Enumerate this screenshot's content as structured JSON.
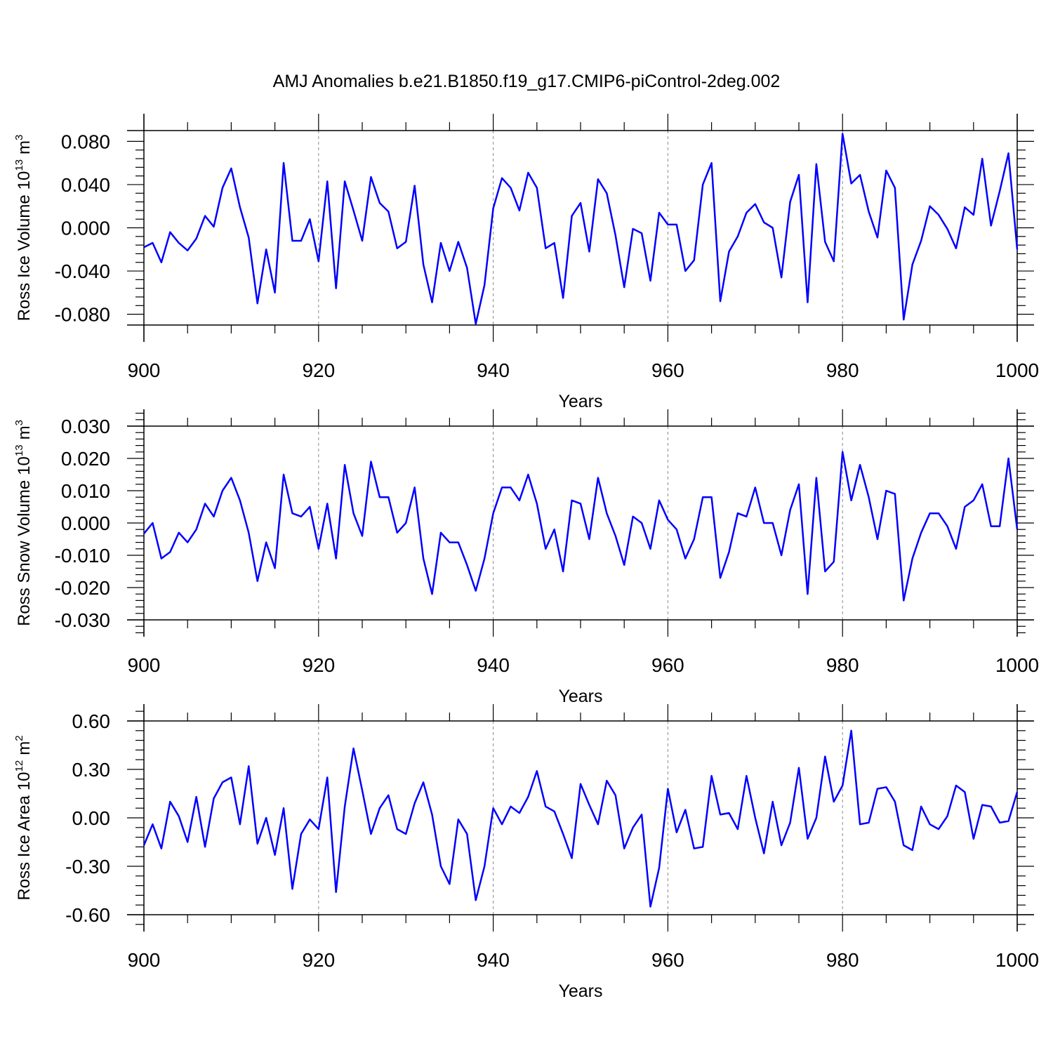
{
  "chart_data": [
    {
      "type": "line",
      "title": "AMJ Anomalies b.e21.B1850.f19_g17.CMIP6-piControl-2deg.002",
      "xlabel": "Years",
      "ylabel": "Ross Ice Volume",
      "ylabel_scale": "10",
      "ylabel_scale_exp": "13",
      "ylabel_unit": "m",
      "ylabel_unit_exp": "3",
      "xlim": [
        900,
        1000
      ],
      "xticks": [
        900,
        920,
        940,
        960,
        980,
        1000
      ],
      "ylim": [
        -0.09,
        0.09
      ],
      "yticks": [
        {
          "value": -0.08,
          "label": "-0.080"
        },
        {
          "value": -0.04,
          "label": "-0.040"
        },
        {
          "value": 0,
          "label": "0.000"
        },
        {
          "value": 0.04,
          "label": "0.040"
        },
        {
          "value": 0.08,
          "label": "0.080"
        }
      ],
      "grid": true,
      "color": "#0000ff",
      "x": [
        900,
        901,
        902,
        903,
        904,
        905,
        906,
        907,
        908,
        909,
        910,
        911,
        912,
        913,
        914,
        915,
        916,
        917,
        918,
        919,
        920,
        921,
        922,
        923,
        924,
        925,
        926,
        927,
        928,
        929,
        930,
        931,
        932,
        933,
        934,
        935,
        936,
        937,
        938,
        939,
        940,
        941,
        942,
        943,
        944,
        945,
        946,
        947,
        948,
        949,
        950,
        951,
        952,
        953,
        954,
        955,
        956,
        957,
        958,
        959,
        960,
        961,
        962,
        963,
        964,
        965,
        966,
        967,
        968,
        969,
        970,
        971,
        972,
        973,
        974,
        975,
        976,
        977,
        978,
        979,
        980,
        981,
        982,
        983,
        984,
        985,
        986,
        987,
        988,
        989,
        990,
        991,
        992,
        993,
        994,
        995,
        996,
        997,
        998,
        999,
        1000
      ],
      "values": [
        -0.018,
        -0.014,
        -0.032,
        -0.004,
        -0.014,
        -0.021,
        -0.01,
        0.011,
        0.001,
        0.037,
        0.055,
        0.019,
        -0.009,
        -0.07,
        -0.02,
        -0.06,
        0.06,
        -0.012,
        -0.012,
        0.008,
        -0.031,
        0.043,
        -0.056,
        0.043,
        0.016,
        -0.012,
        0.047,
        0.023,
        0.015,
        -0.019,
        -0.013,
        0.039,
        -0.034,
        -0.069,
        -0.014,
        -0.04,
        -0.013,
        -0.037,
        -0.089,
        -0.053,
        0.018,
        0.046,
        0.037,
        0.016,
        0.051,
        0.037,
        -0.019,
        -0.014,
        -0.065,
        0.011,
        0.023,
        -0.022,
        0.045,
        0.032,
        -0.007,
        -0.055,
        -0.001,
        -0.005,
        -0.049,
        0.014,
        0.003,
        0.003,
        -0.04,
        -0.03,
        0.04,
        0.06,
        -0.068,
        -0.022,
        -0.008,
        0.014,
        0.022,
        0.005,
        0.0,
        -0.046,
        0.024,
        0.049,
        -0.069,
        0.059,
        -0.013,
        -0.031,
        0.087,
        0.041,
        0.049,
        0.015,
        -0.009,
        0.053,
        0.037,
        -0.085,
        -0.034,
        -0.012,
        0.02,
        0.012,
        -0.001,
        -0.019,
        0.019,
        0.012,
        0.064,
        0.002,
        0.034,
        0.069,
        -0.02
      ]
    },
    {
      "type": "line",
      "xlabel": "Years",
      "ylabel": "Ross Snow Volume",
      "ylabel_scale": "10",
      "ylabel_scale_exp": "13",
      "ylabel_unit": "m",
      "ylabel_unit_exp": "3",
      "xlim": [
        900,
        1000
      ],
      "xticks": [
        900,
        920,
        940,
        960,
        980,
        1000
      ],
      "ylim": [
        -0.03,
        0.03
      ],
      "yticks": [
        {
          "value": -0.03,
          "label": "-0.030"
        },
        {
          "value": -0.02,
          "label": "-0.020"
        },
        {
          "value": -0.01,
          "label": "-0.010"
        },
        {
          "value": 0,
          "label": "0.000"
        },
        {
          "value": 0.01,
          "label": "0.010"
        },
        {
          "value": 0.02,
          "label": "0.020"
        },
        {
          "value": 0.03,
          "label": "0.030"
        }
      ],
      "grid": true,
      "color": "#0000ff",
      "x": [
        900,
        901,
        902,
        903,
        904,
        905,
        906,
        907,
        908,
        909,
        910,
        911,
        912,
        913,
        914,
        915,
        916,
        917,
        918,
        919,
        920,
        921,
        922,
        923,
        924,
        925,
        926,
        927,
        928,
        929,
        930,
        931,
        932,
        933,
        934,
        935,
        936,
        937,
        938,
        939,
        940,
        941,
        942,
        943,
        944,
        945,
        946,
        947,
        948,
        949,
        950,
        951,
        952,
        953,
        954,
        955,
        956,
        957,
        958,
        959,
        960,
        961,
        962,
        963,
        964,
        965,
        966,
        967,
        968,
        969,
        970,
        971,
        972,
        973,
        974,
        975,
        976,
        977,
        978,
        979,
        980,
        981,
        982,
        983,
        984,
        985,
        986,
        987,
        988,
        989,
        990,
        991,
        992,
        993,
        994,
        995,
        996,
        997,
        998,
        999,
        1000
      ],
      "values": [
        -0.0033,
        0.0,
        -0.011,
        -0.009,
        -0.003,
        -0.006,
        -0.002,
        0.006,
        0.002,
        0.01,
        0.014,
        0.007,
        -0.003,
        -0.018,
        -0.006,
        -0.014,
        0.015,
        0.003,
        0.002,
        0.005,
        -0.008,
        0.006,
        -0.011,
        0.018,
        0.003,
        -0.004,
        0.019,
        0.008,
        0.008,
        -0.003,
        0.0,
        0.011,
        -0.011,
        -0.022,
        -0.003,
        -0.006,
        -0.006,
        -0.013,
        -0.021,
        -0.011,
        0.003,
        0.011,
        0.011,
        0.007,
        0.015,
        0.006,
        -0.008,
        -0.002,
        -0.015,
        0.007,
        0.006,
        -0.005,
        0.014,
        0.003,
        -0.004,
        -0.013,
        0.002,
        0.0,
        -0.008,
        0.007,
        0.001,
        -0.002,
        -0.011,
        -0.005,
        0.008,
        0.008,
        -0.017,
        -0.009,
        0.003,
        0.002,
        0.011,
        0.0,
        0.0,
        -0.01,
        0.004,
        0.012,
        -0.022,
        0.014,
        -0.015,
        -0.012,
        0.022,
        0.007,
        0.018,
        0.008,
        -0.005,
        0.01,
        0.009,
        -0.024,
        -0.011,
        -0.003,
        0.003,
        0.003,
        -0.001,
        -0.008,
        0.005,
        0.007,
        0.012,
        -0.001,
        -0.001,
        0.02,
        -0.002
      ]
    },
    {
      "type": "line",
      "xlabel": "Years",
      "ylabel": "Ross Ice Area",
      "ylabel_scale": "10",
      "ylabel_scale_exp": "12",
      "ylabel_unit": "m",
      "ylabel_unit_exp": "2",
      "xlim": [
        900,
        1000
      ],
      "xticks": [
        900,
        920,
        940,
        960,
        980,
        1000
      ],
      "ylim": [
        -0.6,
        0.6
      ],
      "yticks": [
        {
          "value": -0.6,
          "label": "-0.60"
        },
        {
          "value": -0.3,
          "label": "-0.30"
        },
        {
          "value": 0,
          "label": "0.00"
        },
        {
          "value": 0.3,
          "label": "0.30"
        },
        {
          "value": 0.6,
          "label": "0.60"
        }
      ],
      "grid": true,
      "color": "#0000ff",
      "x": [
        900,
        901,
        902,
        903,
        904,
        905,
        906,
        907,
        908,
        909,
        910,
        911,
        912,
        913,
        914,
        915,
        916,
        917,
        918,
        919,
        920,
        921,
        922,
        923,
        924,
        925,
        926,
        927,
        928,
        929,
        930,
        931,
        932,
        933,
        934,
        935,
        936,
        937,
        938,
        939,
        940,
        941,
        942,
        943,
        944,
        945,
        946,
        947,
        948,
        949,
        950,
        951,
        952,
        953,
        954,
        955,
        956,
        957,
        958,
        959,
        960,
        961,
        962,
        963,
        964,
        965,
        966,
        967,
        968,
        969,
        970,
        971,
        972,
        973,
        974,
        975,
        976,
        977,
        978,
        979,
        980,
        981,
        982,
        983,
        984,
        985,
        986,
        987,
        988,
        989,
        990,
        991,
        992,
        993,
        994,
        995,
        996,
        997,
        998,
        999,
        1000
      ],
      "values": [
        -0.17,
        -0.04,
        -0.19,
        0.1,
        0.01,
        -0.15,
        0.13,
        -0.18,
        0.12,
        0.22,
        0.25,
        -0.04,
        0.32,
        -0.16,
        0.0,
        -0.23,
        0.06,
        -0.44,
        -0.1,
        -0.01,
        -0.07,
        0.25,
        -0.46,
        0.07,
        0.43,
        0.17,
        -0.1,
        0.06,
        0.14,
        -0.07,
        -0.1,
        0.09,
        0.22,
        0.02,
        -0.3,
        -0.41,
        -0.01,
        -0.1,
        -0.51,
        -0.3,
        0.06,
        -0.04,
        0.07,
        0.03,
        0.13,
        0.29,
        0.07,
        0.04,
        -0.1,
        -0.25,
        0.21,
        0.08,
        -0.04,
        0.23,
        0.14,
        -0.19,
        -0.06,
        0.02,
        -0.55,
        -0.31,
        0.18,
        -0.09,
        0.05,
        -0.19,
        -0.18,
        0.26,
        0.02,
        0.03,
        -0.07,
        0.26,
        0.0,
        -0.22,
        0.1,
        -0.17,
        -0.03,
        0.31,
        -0.13,
        0.0,
        0.38,
        0.1,
        0.2,
        0.54,
        -0.04,
        -0.03,
        0.18,
        0.19,
        0.1,
        -0.17,
        -0.2,
        0.07,
        -0.04,
        -0.07,
        0.01,
        0.2,
        0.16,
        -0.13,
        0.08,
        0.07,
        -0.03,
        -0.02,
        0.16
      ]
    }
  ]
}
